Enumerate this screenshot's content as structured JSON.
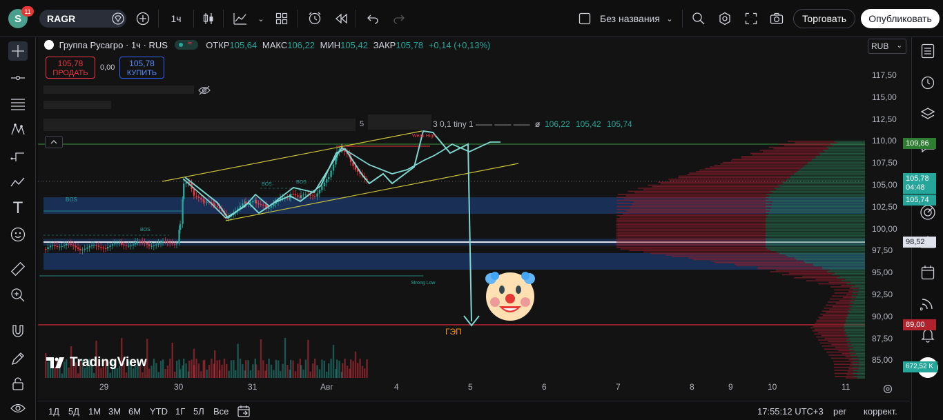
{
  "topbar": {
    "avatar_letter": "S",
    "notifications": "11",
    "symbol": "RAGR",
    "interval": "1ч",
    "layout_name": "Без названия",
    "trade_label": "Торговать",
    "publish_label": "Опубликовать"
  },
  "legend": {
    "title": "Группа Русагро · 1ч · RUS",
    "open_k": "ОТКР",
    "open_v": "105,64",
    "high_k": "МАКС",
    "high_v": "106,22",
    "low_k": "МИН",
    "low_v": "105,42",
    "close_k": "ЗАКР",
    "close_v": "105,78",
    "change": "+0,14 (+0,13%)",
    "sell_price": "105,78",
    "sell_label": "ПРОДАТЬ",
    "spread": "0,00",
    "buy_price": "105,78",
    "buy_label": "КУПИТЬ",
    "indicator_num": "5",
    "indicator_text": "3 0,1 tiny 1 —— —— ——",
    "indicator_sym": "ø",
    "indicator_v1": "106,22",
    "indicator_v2": "105,42",
    "indicator_v3": "105,74"
  },
  "currency": "RUB",
  "price_axis": {
    "ticks": [
      "117,50",
      "115,00",
      "112,50",
      "110,00",
      "107,50",
      "105,00",
      "102,50",
      "100,00",
      "97,50",
      "95,00",
      "92,50",
      "90,00",
      "87,50",
      "85,00"
    ],
    "labels": {
      "level_top": "109,86",
      "last": "105,78",
      "countdown": "04:48",
      "vwap": "105,74",
      "level_mid": "98,52",
      "gap": "89,00",
      "volume": "672,52 K"
    }
  },
  "time_axis": [
    "29",
    "30",
    "31",
    "Авг",
    "4",
    "5",
    "6",
    "7",
    "8",
    "9",
    "10",
    "11"
  ],
  "annotations": {
    "bos1": "BOS",
    "bos2": "BOS",
    "bos3": "BOS",
    "bos4": "BOS",
    "strong_low": "Strong Low",
    "weak_high": "Weak High",
    "gap": "ГЭП",
    "watermark": "TradingView"
  },
  "bottombar": {
    "ranges": [
      "1Д",
      "5Д",
      "1М",
      "3М",
      "6М",
      "YTD",
      "1Г",
      "5Л",
      "Все"
    ],
    "time": "17:55:12 UTC+3",
    "session": "рег",
    "adjust": "коррект."
  },
  "colors": {
    "up": "#26a69a",
    "down": "#f23645",
    "trendline": "#c9c33a",
    "projection": "#7ed8d0",
    "zone": "#1e3a6e",
    "gap_line": "#b2222d"
  },
  "chart_data": {
    "type": "candlestick",
    "xlabel": "",
    "ylabel": "",
    "ylim": [
      84,
      119
    ],
    "last_close": 105.78,
    "levels": [
      109.86,
      98.52,
      89.0
    ]
  }
}
